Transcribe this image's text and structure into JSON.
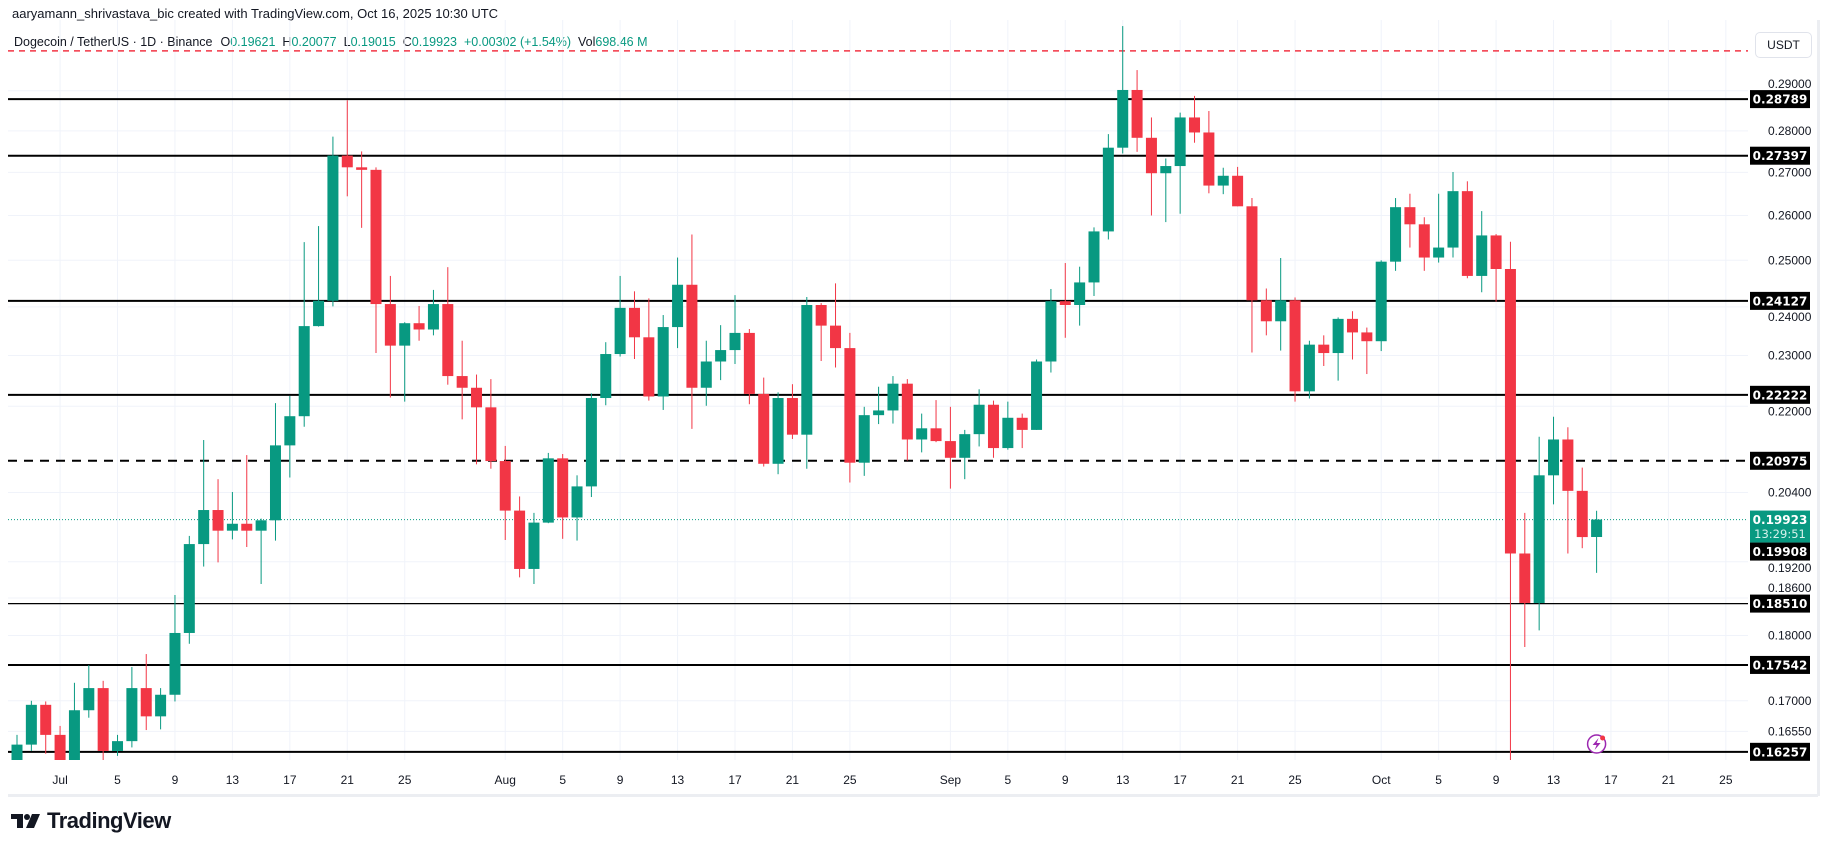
{
  "header": {
    "credit": "aaryamann_shrivastava_bic created with TradingView.com, Oct 16, 2025 10:30 UTC",
    "symbol": "Dogecoin / TetherUS · 1D · Binance",
    "o_label": "O",
    "o_value": "0.19621",
    "h_label": "H",
    "h_value": "0.20077",
    "l_label": "L",
    "l_value": "0.19015",
    "c_label": "C",
    "c_value": "0.19923",
    "change": "+0.00302 (+1.54%)",
    "vol_label": "Vol",
    "vol_value": "698.46 M"
  },
  "currency_button": "USDT",
  "logo_text": "TradingView",
  "colors": {
    "up": "#089981",
    "down": "#F23645",
    "level": "#000000",
    "alert": "#F23645",
    "current": "#089981",
    "lightning": "#9c27b0"
  },
  "chart_data": {
    "type": "candlestick",
    "title": "",
    "symbol": "Dogecoin / TetherUS",
    "interval": "1D",
    "year": 2025,
    "y_scale": "log",
    "ylim": [
      0.158,
      0.31
    ],
    "grid": true,
    "y_ticks": [
      "0.29000",
      "0.28000",
      "0.27000",
      "0.26000",
      "0.25000",
      "0.24000",
      "0.23000",
      "0.22000",
      "0.20400",
      "0.19200",
      "0.18600",
      "0.18000",
      "0.17000",
      "0.16550"
    ],
    "x_ticks": [
      "Jul",
      "5",
      "9",
      "13",
      "17",
      "21",
      "25",
      "Aug",
      "5",
      "9",
      "13",
      "17",
      "21",
      "25",
      "Sep",
      "5",
      "9",
      "13",
      "17",
      "21",
      "25",
      "Oct",
      "5",
      "9",
      "13",
      "17",
      "21",
      "25"
    ],
    "levels": [
      {
        "price": "0.28789",
        "style": "solid"
      },
      {
        "price": "0.27397",
        "style": "solid"
      },
      {
        "price": "0.24127",
        "style": "solid"
      },
      {
        "price": "0.22222",
        "style": "solid"
      },
      {
        "price": "0.20975",
        "style": "dashed"
      },
      {
        "price": "0.18510",
        "style": "solid-thin"
      },
      {
        "price": "0.17542",
        "style": "solid"
      },
      {
        "price": "0.16257",
        "style": "solid"
      }
    ],
    "alert_level": 0.3003,
    "extra_label": "0.19908",
    "current_price": {
      "price": "0.19923",
      "countdown": "13:29:51"
    },
    "columns": [
      "date",
      "open",
      "high",
      "low",
      "close"
    ],
    "candles": [
      [
        "Jun 28",
        0.161,
        0.165,
        0.16,
        0.1636
      ],
      [
        "Jun 29",
        0.1636,
        0.17,
        0.1627,
        0.1694
      ],
      [
        "Jun 30",
        0.1694,
        0.1699,
        0.1623,
        0.165
      ],
      [
        "Jul 1",
        0.165,
        0.1663,
        0.1598,
        0.1612
      ],
      [
        "Jul 2",
        0.1612,
        0.1727,
        0.16,
        0.1686
      ],
      [
        "Jul 3",
        0.1686,
        0.1754,
        0.1675,
        0.1719
      ],
      [
        "Jul 4",
        0.1719,
        0.173,
        0.1612,
        0.1627
      ],
      [
        "Jul 5",
        0.1627,
        0.165,
        0.162,
        0.1641
      ],
      [
        "Jul 6",
        0.1641,
        0.1751,
        0.1632,
        0.1719
      ],
      [
        "Jul 7",
        0.1719,
        0.1771,
        0.1657,
        0.1677
      ],
      [
        "Jul 8",
        0.1677,
        0.1719,
        0.1658,
        0.1709
      ],
      [
        "Jul 9",
        0.1709,
        0.1865,
        0.1699,
        0.1804
      ],
      [
        "Jul 10",
        0.1804,
        0.1964,
        0.1787,
        0.195
      ],
      [
        "Jul 11",
        0.195,
        0.2136,
        0.1912,
        0.2009
      ],
      [
        "Jul 12",
        0.2009,
        0.2064,
        0.1919,
        0.1973
      ],
      [
        "Jul 13",
        0.1973,
        0.2041,
        0.1958,
        0.1985
      ],
      [
        "Jul 14",
        0.1985,
        0.2108,
        0.1945,
        0.1973
      ],
      [
        "Jul 15",
        0.1973,
        0.1994,
        0.1883,
        0.1991
      ],
      [
        "Jul 16",
        0.1991,
        0.2206,
        0.1956,
        0.2126
      ],
      [
        "Jul 17",
        0.2126,
        0.222,
        0.2067,
        0.2181
      ],
      [
        "Jul 18",
        0.2181,
        0.254,
        0.2161,
        0.236
      ],
      [
        "Jul 19",
        0.236,
        0.2576,
        0.2359,
        0.2413
      ],
      [
        "Jul 20",
        0.2413,
        0.2786,
        0.2401,
        0.274
      ],
      [
        "Jul 21",
        0.274,
        0.2876,
        0.2644,
        0.2712
      ],
      [
        "Jul 22",
        0.2712,
        0.275,
        0.2572,
        0.2706
      ],
      [
        "Jul 23",
        0.2706,
        0.2712,
        0.2305,
        0.2406
      ],
      [
        "Jul 24",
        0.2406,
        0.2466,
        0.2217,
        0.232
      ],
      [
        "Jul 25",
        0.232,
        0.2368,
        0.2209,
        0.2366
      ],
      [
        "Jul 26",
        0.2366,
        0.2402,
        0.233,
        0.2353
      ],
      [
        "Jul 27",
        0.2353,
        0.2436,
        0.2341,
        0.2406
      ],
      [
        "Jul 28",
        0.2406,
        0.2485,
        0.2242,
        0.2259
      ],
      [
        "Jul 29",
        0.2259,
        0.233,
        0.2175,
        0.2236
      ],
      [
        "Jul 30",
        0.2236,
        0.2262,
        0.2091,
        0.2198
      ],
      [
        "Jul 31",
        0.2198,
        0.2253,
        0.2083,
        0.2097
      ],
      [
        "Aug 1",
        0.2097,
        0.2125,
        0.1957,
        0.2008
      ],
      [
        "Aug 2",
        0.2008,
        0.2033,
        0.1894,
        0.1908
      ],
      [
        "Aug 3",
        0.1908,
        0.2004,
        0.1883,
        0.1987
      ],
      [
        "Aug 4",
        0.1987,
        0.2112,
        0.1986,
        0.2102
      ],
      [
        "Aug 5",
        0.2102,
        0.211,
        0.1959,
        0.1996
      ],
      [
        "Aug 6",
        0.1996,
        0.2071,
        0.1956,
        0.2051
      ],
      [
        "Aug 7",
        0.2051,
        0.2225,
        0.2032,
        0.2216
      ],
      [
        "Aug 8",
        0.2216,
        0.2327,
        0.2202,
        0.2303
      ],
      [
        "Aug 9",
        0.2303,
        0.2466,
        0.2298,
        0.2398
      ],
      [
        "Aug 10",
        0.2398,
        0.2433,
        0.2293,
        0.2337
      ],
      [
        "Aug 11",
        0.2337,
        0.2418,
        0.2211,
        0.2219
      ],
      [
        "Aug 12",
        0.2219,
        0.2383,
        0.2193,
        0.2358
      ],
      [
        "Aug 13",
        0.2358,
        0.2506,
        0.2315,
        0.2447
      ],
      [
        "Aug 14",
        0.2447,
        0.2557,
        0.2157,
        0.2236
      ],
      [
        "Aug 15",
        0.2236,
        0.233,
        0.2201,
        0.2288
      ],
      [
        "Aug 16",
        0.2288,
        0.2362,
        0.2251,
        0.2311
      ],
      [
        "Aug 17",
        0.2311,
        0.2425,
        0.2283,
        0.2346
      ],
      [
        "Aug 18",
        0.2346,
        0.2354,
        0.2204,
        0.2224
      ],
      [
        "Aug 19",
        0.2224,
        0.2256,
        0.2087,
        0.2092
      ],
      [
        "Aug 20",
        0.2092,
        0.2227,
        0.2073,
        0.2216
      ],
      [
        "Aug 21",
        0.2216,
        0.2243,
        0.2138,
        0.2146
      ],
      [
        "Aug 22",
        0.2146,
        0.2421,
        0.2083,
        0.2404
      ],
      [
        "Aug 23",
        0.2404,
        0.2408,
        0.2289,
        0.2361
      ],
      [
        "Aug 24",
        0.2361,
        0.245,
        0.2276,
        0.2315
      ],
      [
        "Aug 25",
        0.2315,
        0.2346,
        0.2058,
        0.2094
      ],
      [
        "Aug 26",
        0.2094,
        0.2199,
        0.207,
        0.2183
      ],
      [
        "Aug 27",
        0.2183,
        0.2238,
        0.2166,
        0.2192
      ],
      [
        "Aug 28",
        0.2192,
        0.2259,
        0.2167,
        0.2244
      ],
      [
        "Aug 29",
        0.2244,
        0.2253,
        0.2098,
        0.2137
      ],
      [
        "Aug 30",
        0.2137,
        0.2186,
        0.2113,
        0.2158
      ],
      [
        "Aug 31",
        0.2158,
        0.2212,
        0.2132,
        0.2134
      ],
      [
        "Sep 1",
        0.2134,
        0.2199,
        0.2047,
        0.2103
      ],
      [
        "Sep 2",
        0.2103,
        0.2155,
        0.2064,
        0.2147
      ],
      [
        "Sep 3",
        0.2147,
        0.2233,
        0.2124,
        0.2203
      ],
      [
        "Sep 4",
        0.2203,
        0.2211,
        0.2103,
        0.2121
      ],
      [
        "Sep 5",
        0.2121,
        0.2209,
        0.2118,
        0.2178
      ],
      [
        "Sep 6",
        0.2178,
        0.2186,
        0.2121,
        0.2155
      ],
      [
        "Sep 7",
        0.2155,
        0.2292,
        0.2155,
        0.2288
      ],
      [
        "Sep 8",
        0.2288,
        0.2438,
        0.2266,
        0.2412
      ],
      [
        "Sep 9",
        0.2412,
        0.2494,
        0.2336,
        0.2404
      ],
      [
        "Sep 10",
        0.2404,
        0.2486,
        0.2361,
        0.2452
      ],
      [
        "Sep 11",
        0.2452,
        0.2573,
        0.2423,
        0.2564
      ],
      [
        "Sep 12",
        0.2564,
        0.2792,
        0.2546,
        0.2759
      ],
      [
        "Sep 13",
        0.2759,
        0.3069,
        0.2745,
        0.2902
      ],
      [
        "Sep 14",
        0.2902,
        0.2953,
        0.2749,
        0.2783
      ],
      [
        "Sep 15",
        0.2783,
        0.2833,
        0.26,
        0.2698
      ],
      [
        "Sep 16",
        0.2698,
        0.2733,
        0.2585,
        0.2715
      ],
      [
        "Sep 17",
        0.2715,
        0.2845,
        0.2604,
        0.2833
      ],
      [
        "Sep 18",
        0.2833,
        0.2887,
        0.2771,
        0.2796
      ],
      [
        "Sep 19",
        0.2796,
        0.2849,
        0.2651,
        0.2669
      ],
      [
        "Sep 20",
        0.2669,
        0.2711,
        0.2649,
        0.2692
      ],
      [
        "Sep 21",
        0.2692,
        0.2713,
        0.2621,
        0.2621
      ],
      [
        "Sep 22",
        0.2621,
        0.264,
        0.2306,
        0.2414
      ],
      [
        "Sep 23",
        0.2414,
        0.2439,
        0.2341,
        0.237
      ],
      [
        "Sep 24",
        0.237,
        0.2505,
        0.231,
        0.2414
      ],
      [
        "Sep 25",
        0.2414,
        0.242,
        0.2209,
        0.2229
      ],
      [
        "Sep 26",
        0.2229,
        0.233,
        0.2215,
        0.2322
      ],
      [
        "Sep 27",
        0.2322,
        0.2341,
        0.2279,
        0.2305
      ],
      [
        "Sep 28",
        0.2305,
        0.2378,
        0.225,
        0.2375
      ],
      [
        "Sep 29",
        0.2375,
        0.2391,
        0.2292,
        0.2347
      ],
      [
        "Sep 30",
        0.2347,
        0.2357,
        0.2263,
        0.2329
      ],
      [
        "Oct 1",
        0.2329,
        0.25,
        0.2309,
        0.2497
      ],
      [
        "Oct 2",
        0.2497,
        0.264,
        0.2477,
        0.2619
      ],
      [
        "Oct 3",
        0.2619,
        0.265,
        0.2528,
        0.258
      ],
      [
        "Oct 4",
        0.258,
        0.2596,
        0.2477,
        0.2506
      ],
      [
        "Oct 5",
        0.2506,
        0.265,
        0.2495,
        0.2528
      ],
      [
        "Oct 6",
        0.2528,
        0.2701,
        0.2506,
        0.2656
      ],
      [
        "Oct 7",
        0.2656,
        0.2679,
        0.2461,
        0.2466
      ],
      [
        "Oct 8",
        0.2466,
        0.261,
        0.2431,
        0.2555
      ],
      [
        "Oct 9",
        0.2555,
        0.2558,
        0.2411,
        0.2481
      ],
      [
        "Oct 10",
        0.2481,
        0.2541,
        0.16,
        0.1934
      ],
      [
        "Oct 11",
        0.1934,
        0.2004,
        0.1782,
        0.1852
      ],
      [
        "Oct 12",
        0.1852,
        0.2142,
        0.1808,
        0.2071
      ],
      [
        "Oct 13",
        0.2071,
        0.218,
        0.2019,
        0.2137
      ],
      [
        "Oct 14",
        0.2137,
        0.216,
        0.1934,
        0.2043
      ],
      [
        "Oct 15",
        0.2043,
        0.2085,
        0.1943,
        0.1962
      ],
      [
        "Oct 16",
        0.19621,
        0.20077,
        0.19015,
        0.19923
      ]
    ]
  }
}
